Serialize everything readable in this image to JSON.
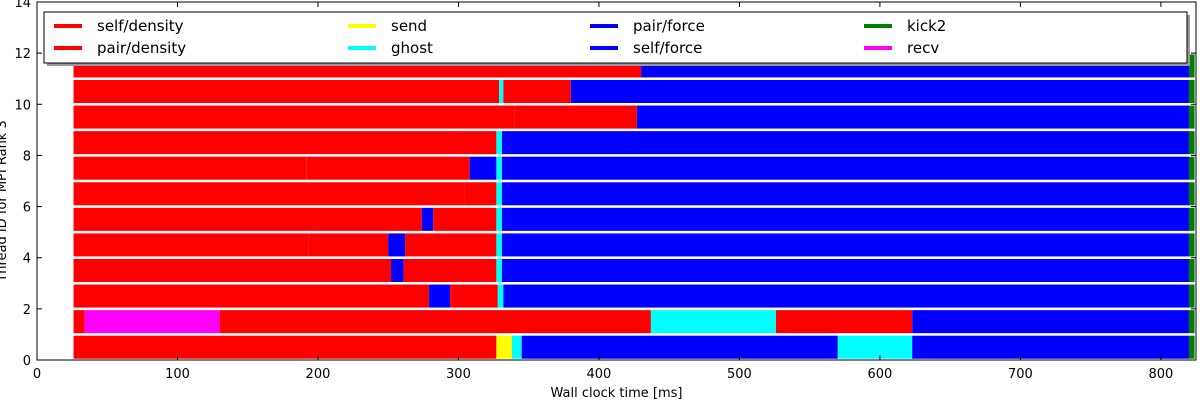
{
  "chart_data": {
    "type": "gantt",
    "xlabel": "Wall clock time [ms]",
    "ylabel": "Thread ID for MPI Rank 3",
    "xlim": [
      0,
      825
    ],
    "ylim": [
      0,
      14
    ],
    "xticks": [
      0,
      100,
      200,
      300,
      400,
      500,
      600,
      700,
      800
    ],
    "yticks": [
      0,
      2,
      4,
      6,
      8,
      10,
      12,
      14
    ],
    "legend_position": "top",
    "task_types": [
      {
        "name": "self/density",
        "color": "#ff0000"
      },
      {
        "name": "pair/density",
        "color": "#ff0000"
      },
      {
        "name": "send",
        "color": "#ffff00"
      },
      {
        "name": "ghost",
        "color": "#00ffff"
      },
      {
        "name": "pair/force",
        "color": "#0000ff"
      },
      {
        "name": "self/force",
        "color": "#0000ff"
      },
      {
        "name": "kick2",
        "color": "#008000"
      },
      {
        "name": "recv",
        "color": "#ff00ff"
      }
    ],
    "threads": [
      {
        "thread": 0,
        "segments": [
          {
            "start": 26,
            "end": 327,
            "task": "self/density"
          },
          {
            "start": 327,
            "end": 338,
            "task": "send"
          },
          {
            "start": 338,
            "end": 345,
            "task": "ghost"
          },
          {
            "start": 345,
            "end": 570,
            "task": "pair/force"
          },
          {
            "start": 570,
            "end": 623,
            "task": "ghost"
          },
          {
            "start": 623,
            "end": 820,
            "task": "pair/force"
          },
          {
            "start": 820,
            "end": 824,
            "task": "kick2"
          }
        ]
      },
      {
        "thread": 1,
        "segments": [
          {
            "start": 26,
            "end": 34,
            "task": "self/density"
          },
          {
            "start": 34,
            "end": 130,
            "task": "recv"
          },
          {
            "start": 130,
            "end": 437,
            "task": "pair/density"
          },
          {
            "start": 437,
            "end": 526,
            "task": "ghost"
          },
          {
            "start": 526,
            "end": 623,
            "task": "pair/density"
          },
          {
            "start": 623,
            "end": 820,
            "task": "pair/force"
          },
          {
            "start": 820,
            "end": 824,
            "task": "kick2"
          }
        ]
      },
      {
        "thread": 2,
        "segments": [
          {
            "start": 26,
            "end": 279,
            "task": "self/density"
          },
          {
            "start": 279,
            "end": 294,
            "task": "pair/force"
          },
          {
            "start": 294,
            "end": 328,
            "task": "pair/density"
          },
          {
            "start": 328,
            "end": 332,
            "task": "ghost"
          },
          {
            "start": 332,
            "end": 820,
            "task": "pair/force"
          },
          {
            "start": 820,
            "end": 824,
            "task": "kick2"
          }
        ]
      },
      {
        "thread": 3,
        "segments": [
          {
            "start": 26,
            "end": 252,
            "task": "self/density"
          },
          {
            "start": 252,
            "end": 261,
            "task": "pair/force"
          },
          {
            "start": 261,
            "end": 327,
            "task": "pair/density"
          },
          {
            "start": 327,
            "end": 331,
            "task": "ghost"
          },
          {
            "start": 331,
            "end": 820,
            "task": "pair/force"
          },
          {
            "start": 820,
            "end": 824,
            "task": "kick2"
          }
        ]
      },
      {
        "thread": 4,
        "segments": [
          {
            "start": 26,
            "end": 193,
            "task": "self/density"
          },
          {
            "start": 193,
            "end": 250,
            "task": "pair/density"
          },
          {
            "start": 250,
            "end": 262,
            "task": "pair/force"
          },
          {
            "start": 262,
            "end": 327,
            "task": "pair/density"
          },
          {
            "start": 327,
            "end": 331,
            "task": "ghost"
          },
          {
            "start": 331,
            "end": 820,
            "task": "pair/force"
          },
          {
            "start": 820,
            "end": 824,
            "task": "kick2"
          }
        ]
      },
      {
        "thread": 5,
        "segments": [
          {
            "start": 26,
            "end": 274,
            "task": "self/density"
          },
          {
            "start": 274,
            "end": 282,
            "task": "pair/force"
          },
          {
            "start": 282,
            "end": 327,
            "task": "pair/density"
          },
          {
            "start": 327,
            "end": 331,
            "task": "ghost"
          },
          {
            "start": 331,
            "end": 820,
            "task": "pair/force"
          },
          {
            "start": 820,
            "end": 824,
            "task": "kick2"
          }
        ]
      },
      {
        "thread": 6,
        "segments": [
          {
            "start": 26,
            "end": 304,
            "task": "self/density"
          },
          {
            "start": 304,
            "end": 327,
            "task": "pair/density"
          },
          {
            "start": 327,
            "end": 331,
            "task": "ghost"
          },
          {
            "start": 331,
            "end": 820,
            "task": "pair/force"
          },
          {
            "start": 820,
            "end": 824,
            "task": "kick2"
          }
        ]
      },
      {
        "thread": 7,
        "segments": [
          {
            "start": 26,
            "end": 192,
            "task": "self/density"
          },
          {
            "start": 192,
            "end": 308,
            "task": "pair/density"
          },
          {
            "start": 308,
            "end": 327,
            "task": "pair/force"
          },
          {
            "start": 327,
            "end": 331,
            "task": "ghost"
          },
          {
            "start": 331,
            "end": 820,
            "task": "pair/force"
          },
          {
            "start": 820,
            "end": 824,
            "task": "kick2"
          }
        ]
      },
      {
        "thread": 8,
        "segments": [
          {
            "start": 26,
            "end": 300,
            "task": "self/density"
          },
          {
            "start": 300,
            "end": 327,
            "task": "pair/density"
          },
          {
            "start": 327,
            "end": 331,
            "task": "ghost"
          },
          {
            "start": 331,
            "end": 820,
            "task": "pair/force"
          },
          {
            "start": 820,
            "end": 824,
            "task": "kick2"
          }
        ]
      },
      {
        "thread": 9,
        "segments": [
          {
            "start": 26,
            "end": 340,
            "task": "self/density"
          },
          {
            "start": 340,
            "end": 427,
            "task": "pair/density"
          },
          {
            "start": 427,
            "end": 820,
            "task": "pair/force"
          },
          {
            "start": 820,
            "end": 824,
            "task": "kick2"
          }
        ]
      },
      {
        "thread": 10,
        "segments": [
          {
            "start": 26,
            "end": 329,
            "task": "self/density"
          },
          {
            "start": 329,
            "end": 332,
            "task": "ghost"
          },
          {
            "start": 332,
            "end": 380,
            "task": "pair/density"
          },
          {
            "start": 380,
            "end": 820,
            "task": "pair/force"
          },
          {
            "start": 820,
            "end": 824,
            "task": "kick2"
          }
        ]
      },
      {
        "thread": 11,
        "segments": [
          {
            "start": 26,
            "end": 430,
            "task": "self/density"
          },
          {
            "start": 430,
            "end": 820,
            "task": "pair/force"
          },
          {
            "start": 820,
            "end": 824,
            "task": "kick2"
          }
        ]
      }
    ]
  }
}
